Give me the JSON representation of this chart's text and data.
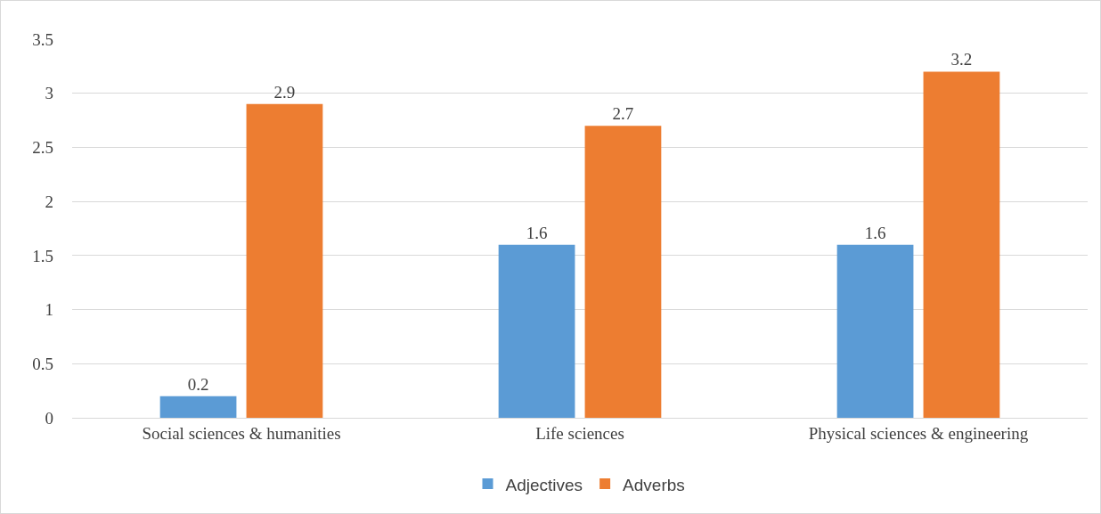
{
  "chart_data": {
    "type": "bar",
    "categories": [
      "Social sciences & humanities",
      "Life sciences",
      "Physical sciences & engineering"
    ],
    "series": [
      {
        "name": "Adjectives",
        "color": "#5b9bd5",
        "values": [
          0.2,
          1.6,
          1.6
        ]
      },
      {
        "name": "Adverbs",
        "color": "#ed7d31",
        "values": [
          2.9,
          2.7,
          3.2
        ]
      }
    ],
    "ylim": [
      0,
      3.5
    ],
    "yticks": [
      0,
      0.5,
      1,
      1.5,
      2,
      2.5,
      3,
      3.5
    ],
    "grid": "y",
    "legend": "bottom",
    "data_labels": true
  }
}
